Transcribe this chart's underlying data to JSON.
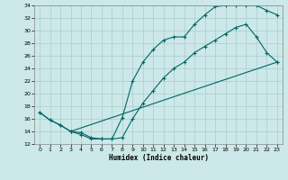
{
  "xlabel": "Humidex (Indice chaleur)",
  "bg_color": "#cce8e8",
  "grid_color": "#aacccc",
  "line_color": "#006666",
  "xlim": [
    -0.5,
    23.5
  ],
  "ylim": [
    12,
    34
  ],
  "xticks": [
    0,
    1,
    2,
    3,
    4,
    5,
    6,
    7,
    8,
    9,
    10,
    11,
    12,
    13,
    14,
    15,
    16,
    17,
    18,
    19,
    20,
    21,
    22,
    23
  ],
  "yticks": [
    12,
    14,
    16,
    18,
    20,
    22,
    24,
    26,
    28,
    30,
    32,
    34
  ],
  "line1_x": [
    0,
    1,
    2,
    3,
    4,
    5,
    6,
    7,
    8,
    9,
    10,
    11,
    12,
    13,
    14,
    15,
    16,
    17,
    18,
    19,
    20,
    21,
    22,
    23
  ],
  "line1_y": [
    17.0,
    15.8,
    15.0,
    14.0,
    13.8,
    13.0,
    12.8,
    12.8,
    16.2,
    22.0,
    25.0,
    27.0,
    28.5,
    29.0,
    29.0,
    31.0,
    32.5,
    33.8,
    34.0,
    34.0,
    34.0,
    34.0,
    33.2,
    32.5
  ],
  "line2_x": [
    0,
    1,
    2,
    3,
    4,
    5,
    6,
    7,
    8,
    9,
    10,
    11,
    12,
    13,
    14,
    15,
    16,
    17,
    18,
    19,
    20,
    21,
    22,
    23
  ],
  "line2_y": [
    17.0,
    15.8,
    15.0,
    14.0,
    13.5,
    12.8,
    12.8,
    12.8,
    13.0,
    16.0,
    18.5,
    20.5,
    22.5,
    24.0,
    25.0,
    26.5,
    27.5,
    28.5,
    29.5,
    30.5,
    31.0,
    29.0,
    26.5,
    25.0
  ],
  "line3_x": [
    3,
    23
  ],
  "line3_y": [
    14.0,
    25.0
  ]
}
